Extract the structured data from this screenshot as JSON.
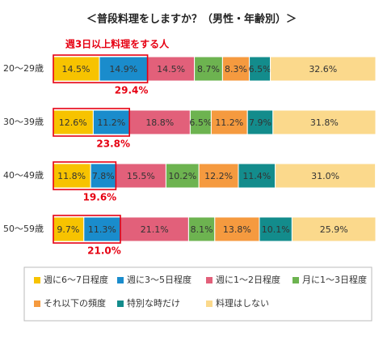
{
  "chart_data": {
    "type": "bar",
    "orientation": "horizontal",
    "stacked": true,
    "title": "＜普段料理をしますか？（男性・年齢別）＞",
    "categories": [
      "20～29歳",
      "30～39歳",
      "40～49歳",
      "50～59歳"
    ],
    "xlim": [
      0,
      100
    ],
    "series": [
      {
        "name": "週に6～7日程度",
        "color": "#f7c300",
        "values": [
          14.5,
          12.6,
          11.8,
          9.7
        ],
        "value_labels": [
          "14.5%",
          "12.6%",
          "11.8%",
          "9.7%"
        ]
      },
      {
        "name": "週に3～5日程度",
        "color": "#1a8ccc",
        "values": [
          14.9,
          11.2,
          7.8,
          11.3
        ],
        "value_labels": [
          "14.9%",
          "11.2%",
          "7.8%",
          "11.3%"
        ]
      },
      {
        "name": "週に1～2日程度",
        "color": "#e2607a",
        "values": [
          14.5,
          18.8,
          15.5,
          21.1
        ],
        "value_labels": [
          "14.5%",
          "18.8%",
          "15.5%",
          "21.1%"
        ]
      },
      {
        "name": "月に1～3日程度",
        "color": "#6db350",
        "values": [
          8.7,
          6.5,
          10.2,
          8.1
        ],
        "value_labels": [
          "8.7%",
          "6.5%",
          "10.2%",
          "8.1%"
        ]
      },
      {
        "name": "それ以下の頻度",
        "color": "#f59a3f",
        "values": [
          8.3,
          11.2,
          12.2,
          13.8
        ],
        "value_labels": [
          "8.3%",
          "11.2%",
          "12.2%",
          "13.8%"
        ]
      },
      {
        "name": "特別な時だけ",
        "color": "#138c8c",
        "values": [
          6.5,
          7.9,
          11.4,
          10.1
        ],
        "value_labels": [
          "6.5%",
          "7.9%",
          "11.4%",
          "10.1%"
        ]
      },
      {
        "name": "料理はしない",
        "color": "#fbd98c",
        "values": [
          32.6,
          31.8,
          31.0,
          25.9
        ],
        "value_labels": [
          "32.6%",
          "31.8%",
          "31.0%",
          "25.9%"
        ]
      }
    ],
    "highlight": {
      "title": "週3日以上料理をする人",
      "values": [
        29.4,
        23.8,
        19.6,
        21.0
      ],
      "value_labels": [
        "29.4%",
        "23.8%",
        "19.6%",
        "21.0%"
      ],
      "color": "#e60012"
    }
  }
}
